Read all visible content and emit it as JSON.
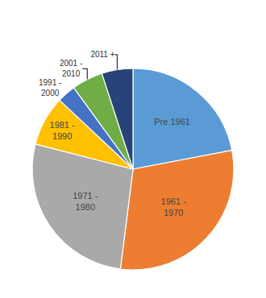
{
  "chart_data": {
    "type": "pie",
    "categories": [
      "Pre 1961",
      "1961 -\n1970",
      "1971 -\n1980",
      "1981 -\n1990",
      "1991 -\n2000",
      "2001 -\n2010",
      "2011 +"
    ],
    "values": [
      22,
      30,
      27,
      8,
      3,
      5,
      5
    ],
    "colors": [
      "#5B9BD5",
      "#ED7D31",
      "#A9A9A9",
      "#FFC000",
      "#4472C4",
      "#70AD47",
      "#264478"
    ]
  }
}
